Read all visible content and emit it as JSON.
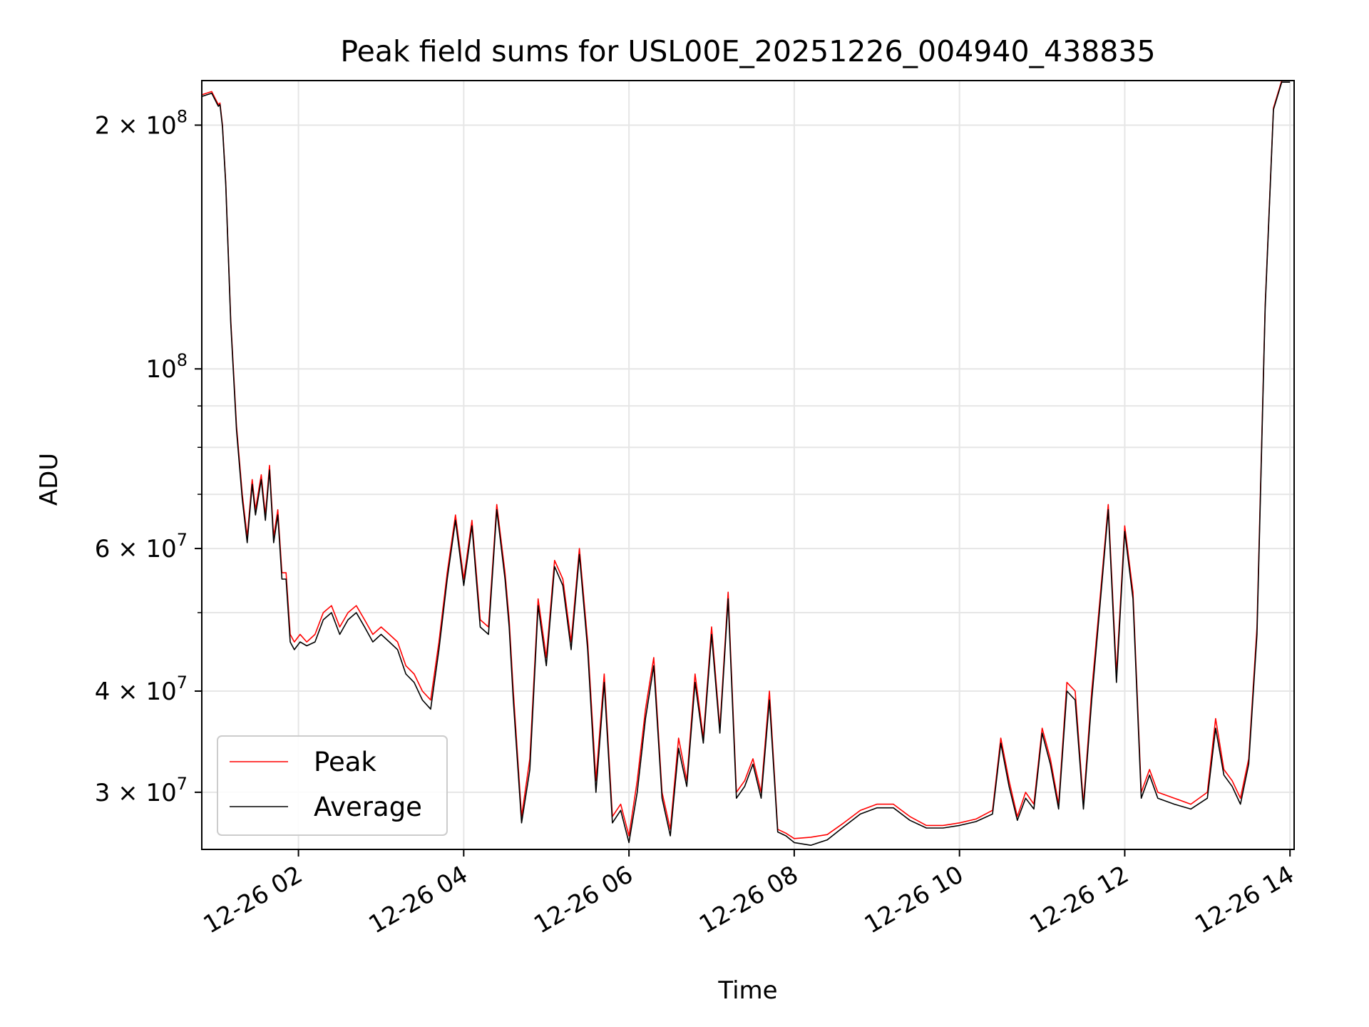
{
  "chart_data": {
    "type": "line",
    "title": "Peak field sums for USL00E_20251226_004940_438835",
    "xlabel": "Time",
    "ylabel": "ADU",
    "yscale": "log",
    "xlim": [
      0.83,
      14.05
    ],
    "ylim": [
      25500000,
      227000000
    ],
    "grid": true,
    "legend_position": "lower-left",
    "x_ticks": [
      {
        "value": 2,
        "label": "12-26 02"
      },
      {
        "value": 4,
        "label": "12-26 04"
      },
      {
        "value": 6,
        "label": "12-26 06"
      },
      {
        "value": 8,
        "label": "12-26 08"
      },
      {
        "value": 10,
        "label": "12-26 10"
      },
      {
        "value": 12,
        "label": "12-26 12"
      },
      {
        "value": 14,
        "label": "12-26 14"
      }
    ],
    "y_ticks": [
      {
        "value": 30000000,
        "base": "3 × 10",
        "exp": "7"
      },
      {
        "value": 40000000,
        "base": "4 × 10",
        "exp": "7"
      },
      {
        "value": 60000000,
        "base": "6 × 10",
        "exp": "7"
      },
      {
        "value": 100000000,
        "base": "10",
        "exp": "8"
      },
      {
        "value": 200000000,
        "base": "2 × 10",
        "exp": "8"
      }
    ],
    "y_minor_ticks": [
      50000000,
      70000000,
      80000000,
      90000000
    ],
    "x_unit": "hours on 12-26",
    "series": [
      {
        "name": "Peak",
        "color": "#ff0000",
        "x": [
          0.83,
          0.95,
          1.03,
          1.05,
          1.08,
          1.12,
          1.18,
          1.25,
          1.32,
          1.38,
          1.44,
          1.48,
          1.55,
          1.6,
          1.65,
          1.7,
          1.75,
          1.8,
          1.85,
          1.9,
          1.95,
          2.02,
          2.1,
          2.2,
          2.3,
          2.4,
          2.5,
          2.6,
          2.7,
          2.8,
          2.9,
          3.0,
          3.1,
          3.2,
          3.3,
          3.4,
          3.5,
          3.6,
          3.7,
          3.8,
          3.9,
          4.0,
          4.1,
          4.2,
          4.3,
          4.4,
          4.5,
          4.55,
          4.6,
          4.7,
          4.8,
          4.9,
          5.0,
          5.1,
          5.2,
          5.3,
          5.4,
          5.5,
          5.6,
          5.7,
          5.8,
          5.9,
          6.0,
          6.1,
          6.2,
          6.3,
          6.4,
          6.5,
          6.6,
          6.7,
          6.8,
          6.9,
          7.0,
          7.1,
          7.2,
          7.3,
          7.4,
          7.5,
          7.6,
          7.7,
          7.8,
          7.9,
          8.0,
          8.2,
          8.4,
          8.6,
          8.8,
          9.0,
          9.2,
          9.4,
          9.6,
          9.8,
          10.0,
          10.2,
          10.4,
          10.5,
          10.6,
          10.7,
          10.8,
          10.9,
          11.0,
          11.1,
          11.2,
          11.3,
          11.4,
          11.5,
          11.6,
          11.7,
          11.8,
          11.9,
          12.0,
          12.1,
          12.2,
          12.3,
          12.4,
          12.6,
          12.8,
          13.0,
          13.1,
          13.2,
          13.3,
          13.4,
          13.5,
          13.6,
          13.7,
          13.8,
          13.9,
          14.0
        ],
        "y": [
          218000000,
          220000000,
          212000000,
          213000000,
          200000000,
          170000000,
          115000000,
          85000000,
          70000000,
          62000000,
          73000000,
          67000000,
          74000000,
          66000000,
          76000000,
          62000000,
          67000000,
          56000000,
          56000000,
          47000000,
          46000000,
          47000000,
          46000000,
          47000000,
          50000000,
          51000000,
          48000000,
          50000000,
          51000000,
          49000000,
          47000000,
          48000000,
          47000000,
          46000000,
          43000000,
          42000000,
          40000000,
          39000000,
          46000000,
          56000000,
          66000000,
          55000000,
          65000000,
          49000000,
          48000000,
          68000000,
          56000000,
          49000000,
          40000000,
          28000000,
          33000000,
          52000000,
          44000000,
          58000000,
          55000000,
          46000000,
          60000000,
          46000000,
          31000000,
          42000000,
          28000000,
          29000000,
          26500000,
          31000000,
          38000000,
          44000000,
          30000000,
          27000000,
          35000000,
          31000000,
          42000000,
          35000000,
          48000000,
          36000000,
          53000000,
          30000000,
          31000000,
          33000000,
          30000000,
          40000000,
          27000000,
          26700000,
          26300000,
          26400000,
          26600000,
          27500000,
          28500000,
          29000000,
          29000000,
          28000000,
          27300000,
          27300000,
          27500000,
          27800000,
          28500000,
          35000000,
          31000000,
          28000000,
          30000000,
          29000000,
          36000000,
          33000000,
          29000000,
          41000000,
          40000000,
          29000000,
          40000000,
          52000000,
          68000000,
          42000000,
          64000000,
          53000000,
          30000000,
          32000000,
          30000000,
          29500000,
          29000000,
          30000000,
          37000000,
          32000000,
          31000000,
          29500000,
          33000000,
          48000000,
          120000000,
          210000000,
          227000000,
          227000000
        ]
      },
      {
        "name": "Average",
        "color": "#000000",
        "x": [
          0.83,
          0.95,
          1.03,
          1.05,
          1.08,
          1.12,
          1.18,
          1.25,
          1.32,
          1.38,
          1.44,
          1.48,
          1.55,
          1.6,
          1.65,
          1.7,
          1.75,
          1.8,
          1.85,
          1.9,
          1.95,
          2.02,
          2.1,
          2.2,
          2.3,
          2.4,
          2.5,
          2.6,
          2.7,
          2.8,
          2.9,
          3.0,
          3.1,
          3.2,
          3.3,
          3.4,
          3.5,
          3.6,
          3.7,
          3.8,
          3.9,
          4.0,
          4.1,
          4.2,
          4.3,
          4.4,
          4.5,
          4.55,
          4.6,
          4.7,
          4.8,
          4.9,
          5.0,
          5.1,
          5.2,
          5.3,
          5.4,
          5.5,
          5.6,
          5.7,
          5.8,
          5.9,
          6.0,
          6.1,
          6.2,
          6.3,
          6.4,
          6.5,
          6.6,
          6.7,
          6.8,
          6.9,
          7.0,
          7.1,
          7.2,
          7.3,
          7.4,
          7.5,
          7.6,
          7.7,
          7.8,
          7.9,
          8.0,
          8.2,
          8.4,
          8.6,
          8.8,
          9.0,
          9.2,
          9.4,
          9.6,
          9.8,
          10.0,
          10.2,
          10.4,
          10.5,
          10.6,
          10.7,
          10.8,
          10.9,
          11.0,
          11.1,
          11.2,
          11.3,
          11.4,
          11.5,
          11.6,
          11.7,
          11.8,
          11.9,
          12.0,
          12.1,
          12.2,
          12.3,
          12.4,
          12.6,
          12.8,
          13.0,
          13.1,
          13.2,
          13.3,
          13.4,
          13.5,
          13.6,
          13.7,
          13.8,
          13.9,
          14.0
        ],
        "y": [
          217000000,
          219000000,
          211000000,
          212000000,
          199000000,
          169000000,
          114000000,
          84000000,
          69000000,
          61000000,
          72000000,
          66000000,
          73000000,
          65000000,
          75000000,
          61000000,
          66000000,
          55000000,
          55000000,
          46000000,
          45000000,
          46000000,
          45500000,
          46000000,
          49000000,
          50000000,
          47000000,
          49000000,
          50000000,
          48000000,
          46000000,
          47000000,
          46000000,
          45000000,
          42000000,
          41000000,
          39000000,
          38000000,
          45000000,
          55000000,
          65000000,
          54000000,
          64000000,
          48000000,
          47000000,
          67000000,
          55000000,
          48000000,
          39000000,
          27500000,
          32000000,
          51000000,
          43000000,
          57000000,
          54000000,
          45000000,
          59000000,
          45000000,
          30000000,
          41000000,
          27500000,
          28500000,
          26000000,
          30000000,
          37000000,
          43000000,
          29500000,
          26500000,
          34000000,
          30500000,
          41000000,
          34500000,
          47000000,
          35500000,
          52000000,
          29500000,
          30500000,
          32500000,
          29500000,
          39000000,
          26800000,
          26500000,
          26000000,
          25800000,
          26200000,
          27200000,
          28200000,
          28700000,
          28700000,
          27700000,
          27100000,
          27100000,
          27300000,
          27600000,
          28200000,
          34500000,
          30500000,
          27700000,
          29500000,
          28600000,
          35500000,
          32500000,
          28600000,
          40000000,
          39000000,
          28600000,
          39000000,
          51000000,
          67000000,
          41000000,
          63000000,
          52000000,
          29500000,
          31500000,
          29500000,
          29000000,
          28600000,
          29500000,
          36000000,
          31500000,
          30500000,
          29000000,
          32500000,
          47000000,
          119000000,
          209000000,
          226000000,
          226000000
        ]
      }
    ]
  }
}
